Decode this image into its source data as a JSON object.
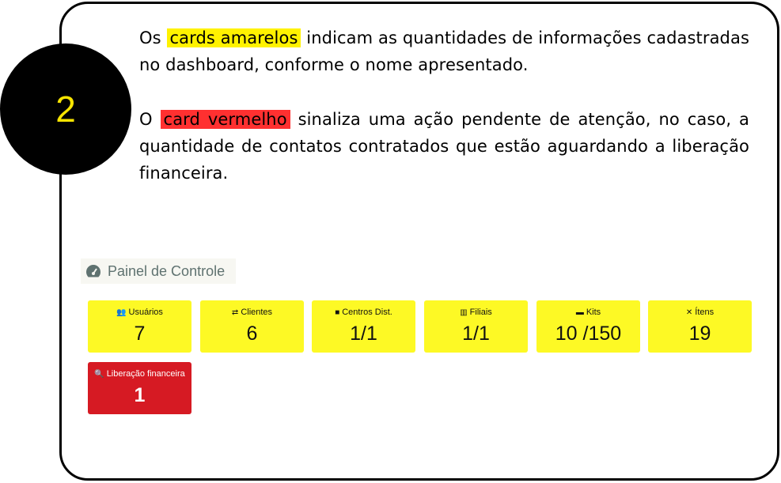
{
  "step_number": "2",
  "paragraph1": {
    "before": "Os ",
    "highlight": "cards amarelos",
    "after": " indicam as quantidades de informações cadastradas no dashboard, conforme o nome apresentado."
  },
  "paragraph2": {
    "before": "O ",
    "highlight": "card vermelho",
    "after": " sinaliza uma ação pendente de atenção, no caso, a quantidade de contatos contratados que estão aguardando a liberação financeira."
  },
  "colors": {
    "yellow_card": "#fdf925",
    "red_card": "#d61a23",
    "highlight_yellow": "#fff200",
    "highlight_red": "#ff3030"
  },
  "panel": {
    "title": "Painel de Controle",
    "icon": "tachometer-icon",
    "cards": [
      {
        "label": "Usuários",
        "value": "7",
        "icon": "users-icon"
      },
      {
        "label": "Clientes",
        "value": "6",
        "icon": "handshake-icon"
      },
      {
        "label": "Centros Dist.",
        "value": "1/1",
        "icon": "truck-icon"
      },
      {
        "label": "Filiais",
        "value": "1/1",
        "icon": "building-icon"
      },
      {
        "label": "Kits",
        "value": "10 /150",
        "icon": "box-open-icon"
      },
      {
        "label": "Ítens",
        "value": "19",
        "icon": "tools-icon"
      },
      {
        "label": "Liberação financeira",
        "value": "1",
        "icon": "search-dollar-icon"
      }
    ]
  }
}
